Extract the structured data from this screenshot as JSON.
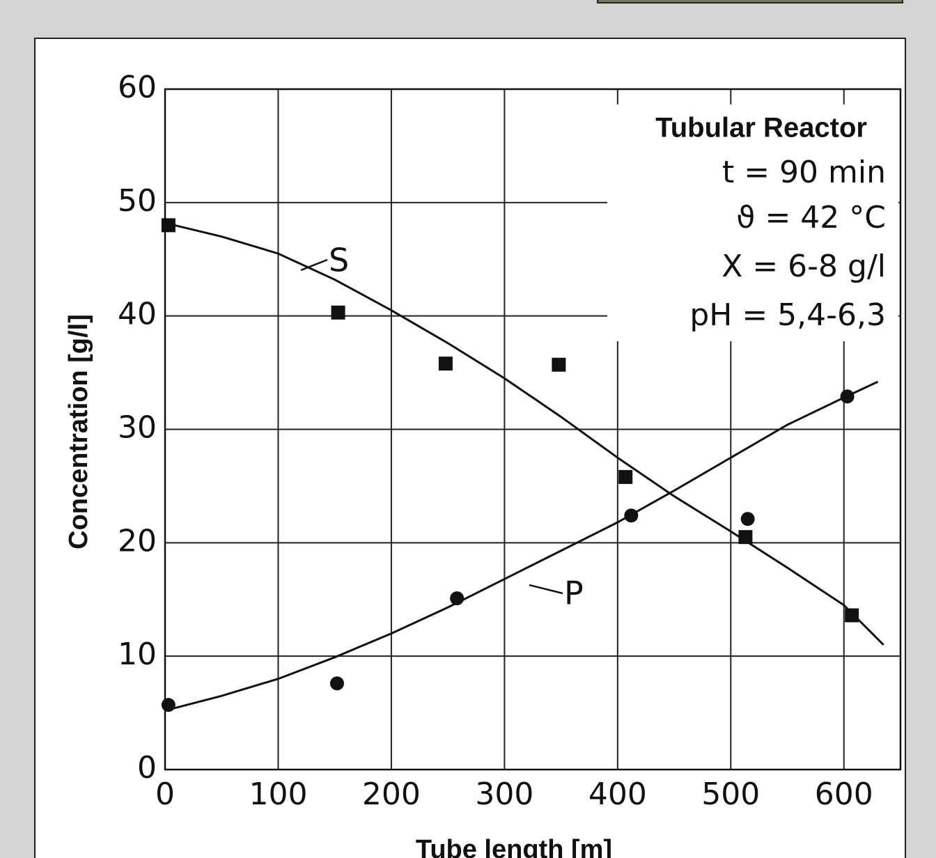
{
  "chart_data": {
    "type": "scatter",
    "xlabel": "Tube length [m]",
    "ylabel": "Concentration [g/l]",
    "box_title": "Tubular Reactor",
    "box_lines": [
      "t  = 90 min",
      "ϑ = 42 °C",
      "X = 6-8 g/l",
      "pH = 5,4-6,3"
    ],
    "xlim": [
      0,
      650
    ],
    "ylim": [
      0,
      60
    ],
    "xticks": [
      0,
      100,
      200,
      300,
      400,
      500,
      600
    ],
    "yticks": [
      0,
      10,
      20,
      30,
      40,
      50,
      60
    ],
    "grid": true,
    "series": [
      {
        "name": "S",
        "color": "#111111",
        "marker": "square",
        "x": [
          3,
          153,
          248,
          348,
          407,
          513,
          607
        ],
        "values": [
          48,
          40.3,
          35.8,
          35.7,
          25.8,
          20.5,
          13.6
        ],
        "fit_x": [
          0,
          50,
          100,
          150,
          200,
          250,
          300,
          350,
          400,
          450,
          500,
          550,
          600,
          635
        ],
        "fit_values": [
          48.2,
          47,
          45.5,
          43.2,
          40.5,
          37.6,
          34.5,
          31.1,
          27.5,
          24.1,
          21,
          17.8,
          14.5,
          11
        ]
      },
      {
        "name": "P",
        "color": "#111111",
        "marker": "circle",
        "x": [
          3,
          152,
          258,
          412,
          515,
          603
        ],
        "values": [
          5.7,
          7.6,
          15.1,
          22.4,
          22.1,
          32.9
        ],
        "fit_x": [
          0,
          50,
          100,
          150,
          200,
          250,
          300,
          350,
          400,
          450,
          500,
          550,
          600,
          630
        ],
        "fit_values": [
          5.2,
          6.5,
          8,
          9.9,
          12,
          14.3,
          16.8,
          19.3,
          21.8,
          24.6,
          27.5,
          30.4,
          32.8,
          34.2
        ]
      }
    ]
  }
}
